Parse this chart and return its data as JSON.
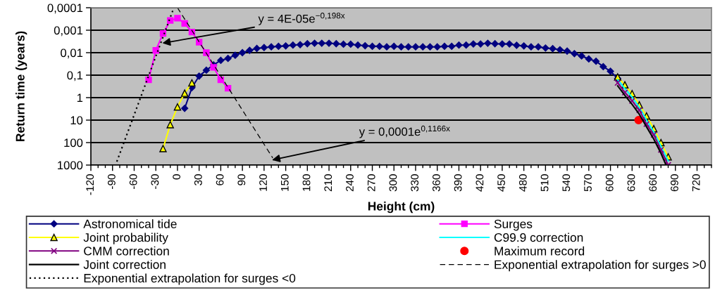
{
  "chart_data": {
    "type": "line",
    "xlabel": "Height (cm)",
    "ylabel": "Return time (years)",
    "log": "y",
    "grid": "y",
    "legend": "bottom",
    "xlim": [
      -120,
      740
    ],
    "xticks": [
      -120,
      {
        "value": -110,
        "label": null
      },
      {
        "value": -100,
        "label": null
      },
      -90,
      {
        "value": -80,
        "label": null
      },
      {
        "value": -70,
        "label": null
      },
      -60,
      {
        "value": -50,
        "label": null
      },
      {
        "value": -40,
        "label": null
      },
      -30,
      {
        "value": -20,
        "label": null
      },
      {
        "value": -10,
        "label": null
      },
      0,
      {
        "value": 10,
        "label": null
      },
      {
        "value": 20,
        "label": null
      },
      30,
      {
        "value": 40,
        "label": null
      },
      {
        "value": 50,
        "label": null
      },
      60,
      {
        "value": 70,
        "label": null
      },
      {
        "value": 80,
        "label": null
      },
      90,
      {
        "value": 100,
        "label": null
      },
      {
        "value": 110,
        "label": null
      },
      120,
      {
        "value": 130,
        "label": null
      },
      {
        "value": 140,
        "label": null
      },
      150,
      {
        "value": 160,
        "label": null
      },
      {
        "value": 170,
        "label": null
      },
      180,
      {
        "value": 190,
        "label": null
      },
      {
        "value": 200,
        "label": null
      },
      210,
      {
        "value": 220,
        "label": null
      },
      {
        "value": 230,
        "label": null
      },
      240,
      {
        "value": 250,
        "label": null
      },
      {
        "value": 260,
        "label": null
      },
      270,
      {
        "value": 280,
        "label": null
      },
      {
        "value": 290,
        "label": null
      },
      300,
      {
        "value": 310,
        "label": null
      },
      {
        "value": 320,
        "label": null
      },
      330,
      {
        "value": 340,
        "label": null
      },
      {
        "value": 350,
        "label": null
      },
      360,
      {
        "value": 370,
        "label": null
      },
      {
        "value": 380,
        "label": null
      },
      390,
      {
        "value": 400,
        "label": null
      },
      {
        "value": 410,
        "label": null
      },
      420,
      {
        "value": 430,
        "label": null
      },
      {
        "value": 440,
        "label": null
      },
      450,
      {
        "value": 460,
        "label": null
      },
      {
        "value": 470,
        "label": null
      },
      480,
      {
        "value": 490,
        "label": null
      },
      {
        "value": 500,
        "label": null
      },
      510,
      {
        "value": 520,
        "label": null
      },
      {
        "value": 530,
        "label": null
      },
      540,
      {
        "value": 550,
        "label": null
      },
      {
        "value": 560,
        "label": null
      },
      570,
      {
        "value": 580,
        "label": null
      },
      {
        "value": 590,
        "label": null
      },
      600,
      {
        "value": 610,
        "label": null
      },
      {
        "value": 620,
        "label": null
      },
      630,
      {
        "value": 640,
        "label": null
      },
      {
        "value": 650,
        "label": null
      },
      660,
      {
        "value": 670,
        "label": null
      },
      {
        "value": 680,
        "label": null
      },
      690,
      {
        "value": 700,
        "label": null
      },
      {
        "value": 710,
        "label": null
      },
      720,
      {
        "value": 730,
        "label": null
      },
      {
        "value": 740,
        "label": null
      }
    ],
    "ylim": [
      1000,
      0.0001
    ],
    "yticks": [
      {
        "value": 0.0001,
        "label": "0,0001"
      },
      {
        "value": 0.001,
        "label": "0,001"
      },
      {
        "value": 0.01,
        "label": "0,01"
      },
      {
        "value": 0.1,
        "label": "0,1"
      },
      1,
      10,
      100,
      1000
    ],
    "annotations": [
      {
        "text": "y = 4E-05e$^{−0,198x}$",
        "x": -21,
        "y": 0.0038
      },
      {
        "text": "y = 0,0001e$^{0,1166x}$",
        "x": 131,
        "y": 600
      }
    ],
    "series": [
      {
        "name": "Astronomical tide",
        "color": "#000080",
        "marker": "diamond",
        "x": [
          10,
          20,
          30,
          40,
          50,
          60,
          70,
          80,
          90,
          100,
          110,
          120,
          130,
          140,
          150,
          160,
          170,
          180,
          190,
          200,
          210,
          220,
          230,
          240,
          250,
          260,
          270,
          280,
          290,
          300,
          310,
          320,
          330,
          340,
          350,
          360,
          370,
          380,
          390,
          400,
          410,
          420,
          430,
          440,
          450,
          460,
          470,
          480,
          490,
          500,
          510,
          520,
          530,
          540,
          550,
          560,
          570,
          580,
          590,
          600,
          610
        ],
        "values": [
          3,
          0.36,
          0.11,
          0.06,
          0.035,
          0.022,
          0.018,
          0.013,
          0.01,
          0.0079,
          0.0065,
          0.0059,
          0.0055,
          0.0052,
          0.005,
          0.0046,
          0.0044,
          0.004,
          0.0038,
          0.0038,
          0.0038,
          0.004,
          0.0042,
          0.0042,
          0.0046,
          0.0049,
          0.0052,
          0.0052,
          0.0055,
          0.0052,
          0.0055,
          0.0055,
          0.0055,
          0.0055,
          0.0055,
          0.0055,
          0.0052,
          0.0052,
          0.0046,
          0.0046,
          0.0041,
          0.0041,
          0.0038,
          0.004,
          0.0041,
          0.0041,
          0.0047,
          0.005,
          0.0055,
          0.0055,
          0.0062,
          0.0066,
          0.0074,
          0.0085,
          0.011,
          0.014,
          0.019,
          0.024,
          0.042,
          0.067,
          0.14
        ]
      },
      {
        "name": "Surges",
        "color": "#ff00ff",
        "marker": "square",
        "x": [
          -40,
          -30,
          -20,
          -10,
          0,
          10,
          20,
          30,
          40,
          50,
          60,
          70
        ],
        "values": [
          0.16,
          0.0079,
          0.0014,
          0.00037,
          0.00029,
          0.0005,
          0.0012,
          0.0034,
          0.01,
          0.045,
          0.16,
          0.38
        ]
      },
      {
        "name": "Joint probability",
        "color": "#ffff00",
        "marker": "triangle",
        "x": [
          -20,
          -10,
          0,
          10,
          20,
          30,
          610,
          620,
          630,
          640,
          650,
          660,
          670,
          680
        ],
        "values": [
          185,
          16,
          2.6,
          0.63,
          0.22,
          null,
          0.12,
          0.27,
          0.66,
          2.1,
          6.5,
          24,
          100,
          430
        ]
      },
      {
        "name": "C99.9 correction",
        "color": "#00ffff",
        "x": [
          610,
          620,
          630,
          640,
          650,
          660,
          670,
          680
        ],
        "values": [
          0.16,
          0.4,
          0.95,
          2.7,
          10,
          33,
          145,
          650
        ]
      },
      {
        "name": "CMM correction",
        "color": "#800080",
        "marker": "cross",
        "x": [
          610,
          620,
          630,
          640,
          650,
          660,
          670,
          680
        ],
        "values": [
          0.22,
          0.59,
          1.4,
          3.6,
          15,
          45,
          210,
          1000
        ]
      },
      {
        "name": "Maximum record",
        "type": "scatter",
        "color": "#ff0000",
        "marker": "circle",
        "x": [
          639
        ],
        "values": [
          10
        ]
      },
      {
        "name": "Joint correction",
        "color": "#000000",
        "x": [
          610,
          620,
          630,
          640,
          650,
          660,
          670,
          677
        ],
        "values": [
          0.3,
          0.8,
          2,
          5.5,
          20,
          70,
          300,
          1000
        ]
      },
      {
        "name": "Exponential extrapolation for surges >0",
        "color": "#000000",
        "line_style": "dashed",
        "x": [
          0,
          132
        ],
        "values": [
          0.0001,
          480
        ]
      },
      {
        "name": "Exponential extrapolation for surges <0",
        "color": "#000000",
        "line_style": "dotted",
        "x": [
          -84,
          -5
        ],
        "values": [
          700,
          0.0001
        ]
      }
    ]
  }
}
